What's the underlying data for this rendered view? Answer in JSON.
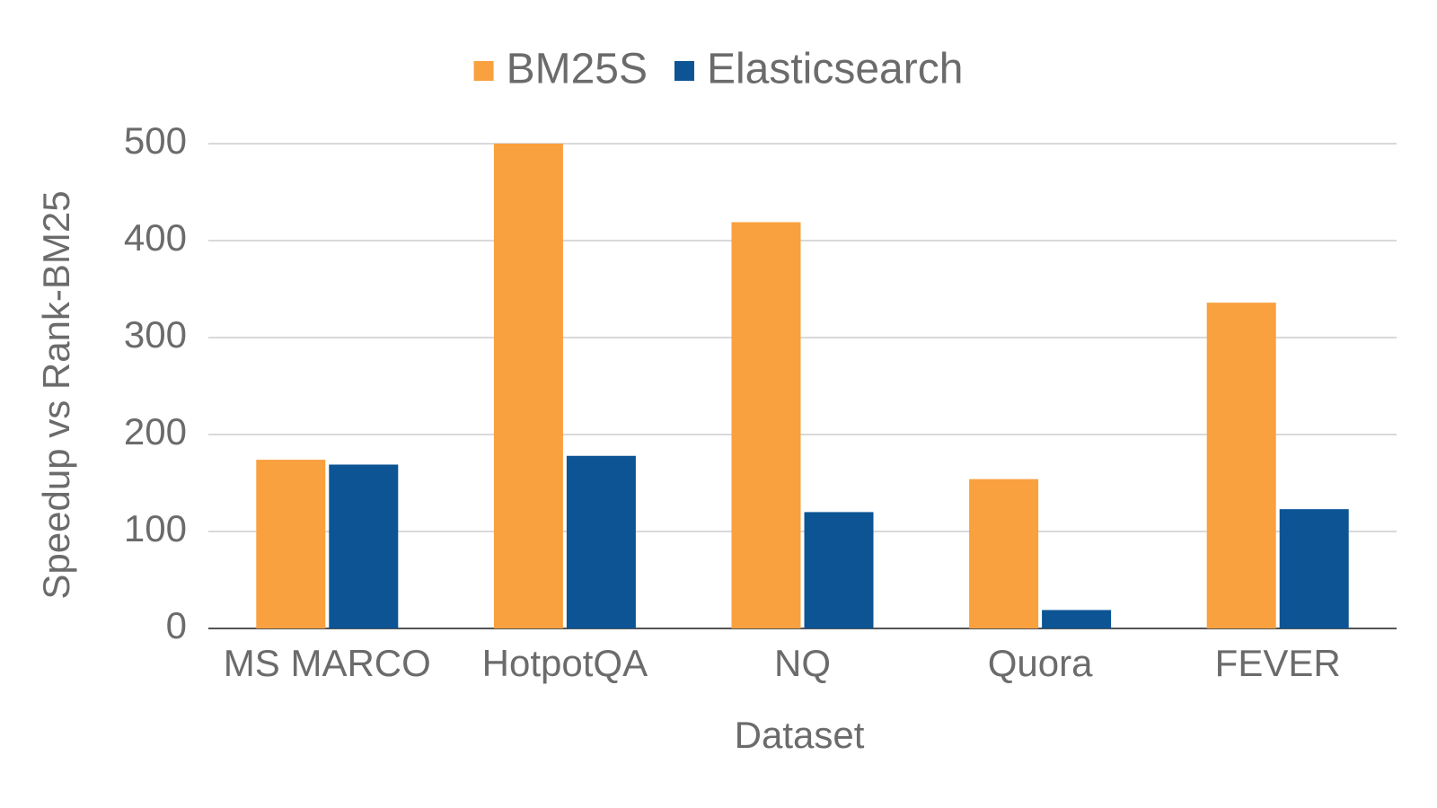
{
  "chart_data": {
    "type": "bar",
    "x_label": "Dataset",
    "y_label": "Speedup vs Rank-BM25",
    "categories": [
      "MS MARCO",
      "HotpotQA",
      "NQ",
      "Quora",
      "FEVER"
    ],
    "series": [
      {
        "name": "BM25S",
        "color": "#f9a03f",
        "values": [
          174,
          500,
          419,
          154,
          336
        ]
      },
      {
        "name": "Elasticsearch",
        "color": "#0c5494",
        "values": [
          169,
          178,
          120,
          19,
          123
        ]
      }
    ],
    "ylim": [
      0,
      500
    ],
    "yticks": [
      0,
      100,
      200,
      300,
      400,
      500
    ],
    "grid": true,
    "legend": "top"
  }
}
